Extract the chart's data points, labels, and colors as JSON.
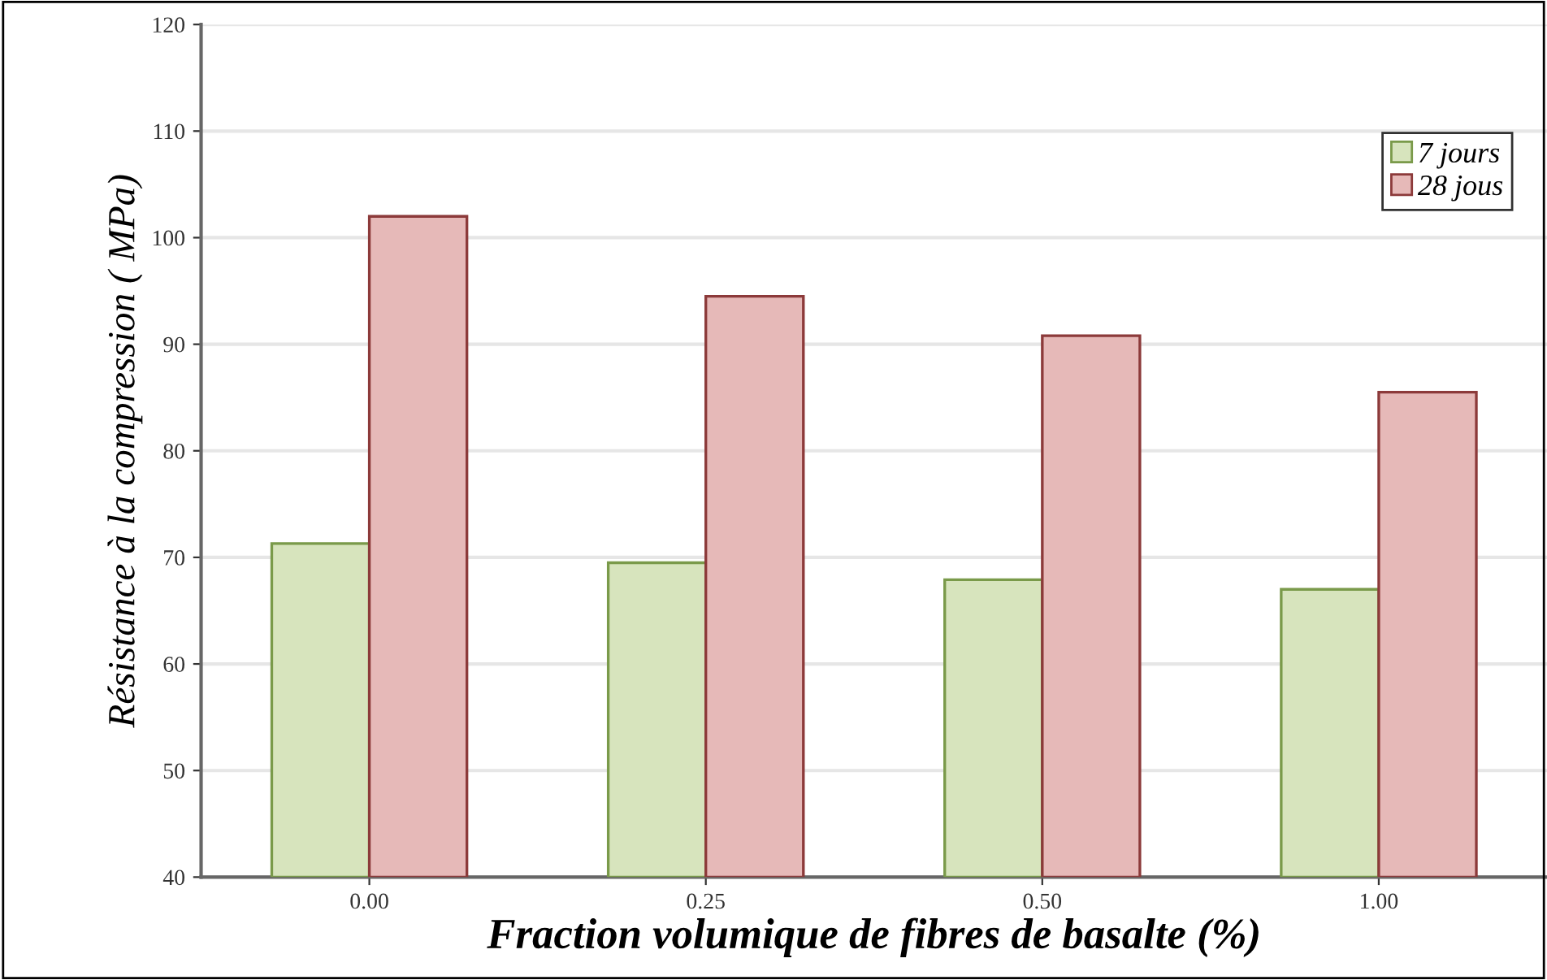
{
  "chart_data": {
    "type": "bar",
    "xlabel": "Fraction volumique de fibres de basalte (%)",
    "ylabel": "Résistance à la compression ( MPa)",
    "categories": [
      "0.00",
      "0.25",
      "0.50",
      "1.00"
    ],
    "series": [
      {
        "name": "7 jours",
        "color": "#d7e4bd",
        "values": [
          71.3,
          69.5,
          67.9,
          67.0
        ]
      },
      {
        "name": "28 jous",
        "color": "#e6b9b8",
        "values": [
          102.0,
          94.5,
          90.8,
          85.5
        ]
      }
    ],
    "ylim": [
      40,
      120
    ],
    "yticks": [
      40,
      50,
      60,
      70,
      80,
      90,
      100,
      110,
      120
    ],
    "grid": "y",
    "legend": "top right"
  }
}
